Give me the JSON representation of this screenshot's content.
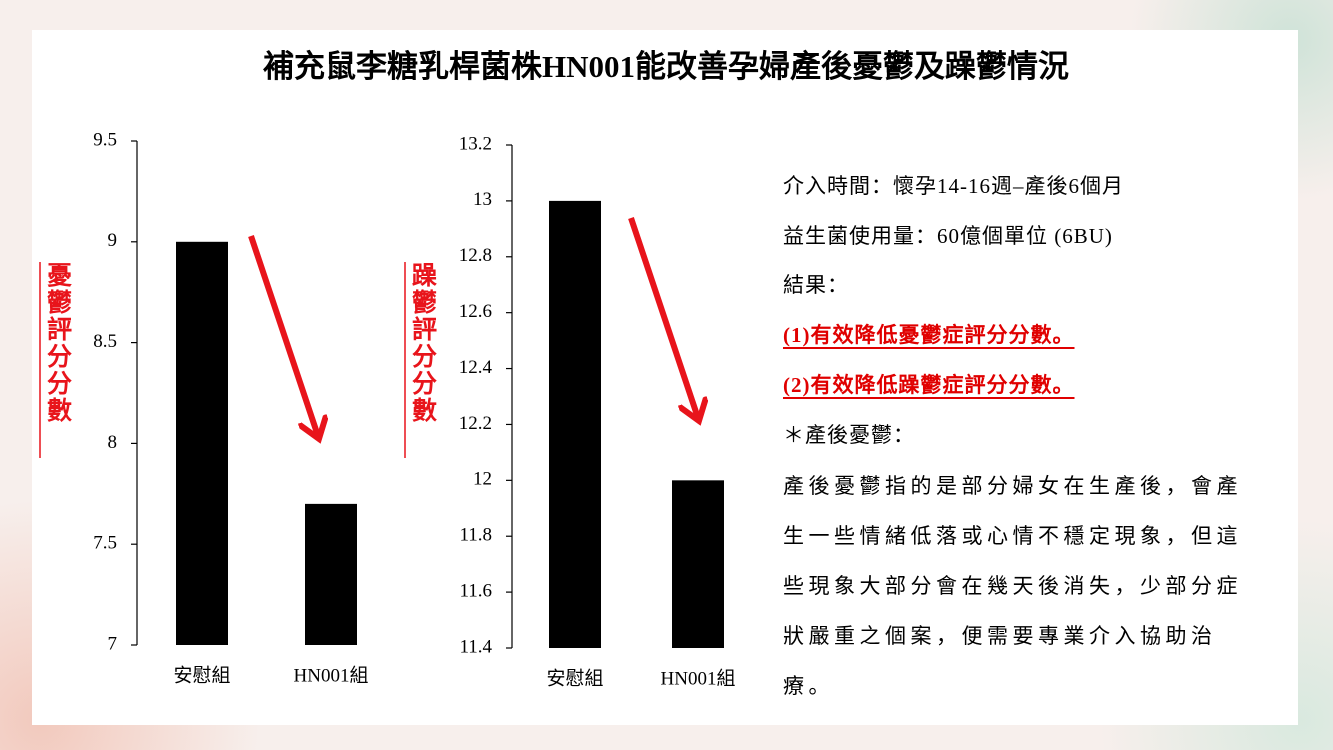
{
  "title": "補充鼠李糖乳桿菌株HN001能改善孕婦產後憂鬱及躁鬱情況",
  "chart_data": [
    {
      "type": "bar",
      "ylabel": "憂鬱評分分數",
      "categories": [
        "安慰組",
        "HN001組"
      ],
      "values": [
        9,
        7.7
      ],
      "color": "#000000",
      "ylim": [
        7,
        9.5
      ],
      "yticks": [
        7,
        7.5,
        8,
        8.5,
        9,
        9.5
      ]
    },
    {
      "type": "bar",
      "ylabel": "躁鬱評分分數",
      "categories": [
        "安慰組",
        "HN001組"
      ],
      "values": [
        13,
        12
      ],
      "color": "#000000",
      "ylim": [
        11.4,
        13.2
      ],
      "yticks": [
        11.4,
        11.6,
        11.8,
        12,
        12.2,
        12.4,
        12.6,
        12.8,
        13,
        13.2
      ]
    }
  ],
  "notes": {
    "lines": [
      "介入時間：懷孕14-16週–產後6個月",
      "益生菌使用量：60億個單位 (6BU)",
      "結果："
    ],
    "results": [
      "(1)有效降低憂鬱症評分分數。",
      "(2)有效降低躁鬱症評分分數。"
    ],
    "heading": "＊產後憂鬱：",
    "paragraph": [
      "產後憂鬱指的是部分婦女在生產後，會產",
      "生一些情緒低落或心情不穩定現象，但這",
      "些現象大部分會在幾天後消失，少部分症",
      "狀嚴重之個案，便需要專業介入協助治",
      "療。"
    ]
  }
}
